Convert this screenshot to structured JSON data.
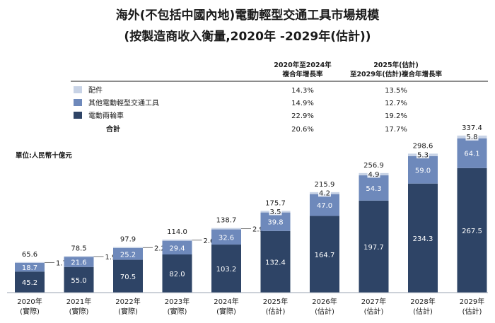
{
  "title_line1": "海外(不包括中國內地)電動輕型交通工具市場規模",
  "title_line2": "(按製造商收入衡量,2020年 -2029年(估計))",
  "table": {
    "col1_header_line1": "2020年至2024年",
    "col1_header_line2": "複合年增長率",
    "col2_header_line1": "2025年(估計)",
    "col2_header_line2": "至2029年(估計)複合年增長率",
    "rows": [
      {
        "label": "配件",
        "cagr1": "14.3%",
        "cagr2": "13.5%"
      },
      {
        "label": "其他電動輕型交通工具",
        "cagr1": "14.9%",
        "cagr2": "12.7%"
      },
      {
        "label": "電動兩輪車",
        "cagr1": "22.9%",
        "cagr2": "19.2%"
      }
    ],
    "total_label": "合計",
    "total_cagr1": "20.6%",
    "total_cagr2": "17.7%"
  },
  "unit_label": "單位:人民幣十億元",
  "colors": {
    "two_wheeler": "#2e4466",
    "other_vehicles": "#6e89bb",
    "accessories": "#c8d3e6",
    "leader_line": "#555555"
  },
  "chart_data": {
    "type": "bar",
    "stacked": true,
    "title": "海外(不包括中國內地)電動輕型交通工具市場規模",
    "unit": "人民幣十億元",
    "categories": [
      "2020年",
      "2021年",
      "2022年",
      "2023年",
      "2024年",
      "2025年",
      "2026年",
      "2027年",
      "2028年",
      "2029年"
    ],
    "category_notes": [
      "(實際)",
      "(實際)",
      "(實際)",
      "(實際)",
      "(實際)",
      "(估計)",
      "(估計)",
      "(估計)",
      "(估計)",
      "(估計)"
    ],
    "series": [
      {
        "name": "電動兩輪車",
        "values": [
          45.2,
          55.0,
          70.5,
          82.0,
          103.2,
          132.4,
          164.7,
          197.7,
          234.3,
          267.5
        ]
      },
      {
        "name": "其他電動輕型交通工具",
        "values": [
          18.7,
          21.6,
          25.2,
          29.4,
          32.6,
          39.8,
          47.0,
          54.3,
          59.0,
          64.1
        ]
      },
      {
        "name": "配件",
        "values": [
          1.7,
          1.9,
          2.2,
          2.6,
          2.9,
          3.5,
          4.2,
          4.9,
          5.3,
          5.8
        ]
      }
    ],
    "totals": [
      65.6,
      78.5,
      97.9,
      114.0,
      138.7,
      175.7,
      215.9,
      256.9,
      298.6,
      337.4
    ],
    "ylim": [
      0,
      337.4
    ]
  }
}
